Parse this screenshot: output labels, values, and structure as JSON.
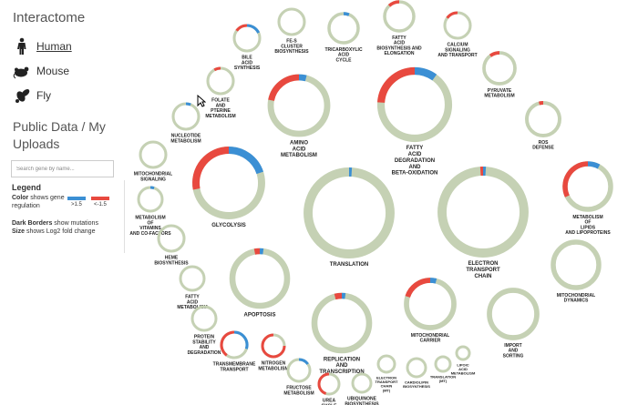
{
  "app": {
    "title": "Interactome"
  },
  "organisms": [
    {
      "label": "Human",
      "icon": "human-icon",
      "active": true
    },
    {
      "label": "Mouse",
      "icon": "mouse-icon",
      "active": false
    },
    {
      "label": "Fly",
      "icon": "fly-icon",
      "active": false
    }
  ],
  "data_heading": "Public Data / My Uploads",
  "search": {
    "placeholder": "Search gene by name..."
  },
  "legend": {
    "title": "Legend",
    "color_key": "Color",
    "color_text": " shows gene regulation",
    "border_key": "Dark Borders",
    "border_text": " show mutations",
    "size_key": "Size",
    "size_text": " shows Log2 fold change",
    "low_label": ">1.5",
    "high_label": "<-1.5"
  },
  "colors": {
    "ring_base": "#c5d1b4",
    "up": "#e8493f",
    "down": "#3b8fd4"
  },
  "pathways": [
    {
      "id": "fe-s-cluster-biosynthesis",
      "label": [
        "FE-S",
        "CLUSTER",
        "BIOSYNTHESIS"
      ],
      "size": 0.3,
      "red": 0.0,
      "blue": 0.0
    },
    {
      "id": "tricarboxylic-acid-cycle",
      "label": [
        "TRICARBOXYLIC",
        "ACID",
        "CYCLE"
      ],
      "size": 0.35,
      "red": 0.0,
      "blue": 0.06
    },
    {
      "id": "fatty-acid-biosynthesis-elongation",
      "label": [
        "FATTY",
        "ACID",
        "BIOSYNTHESIS AND",
        "ELONGATION"
      ],
      "size": 0.35,
      "red": 0.12,
      "blue": 0.0
    },
    {
      "id": "calcium-signaling-transport",
      "label": [
        "CALCIUM",
        "SIGNALING",
        "AND TRANSPORT"
      ],
      "size": 0.3,
      "red": 0.15,
      "blue": 0.0
    },
    {
      "id": "bile-acid-synthesis",
      "label": [
        "BILE",
        "ACID",
        "SYNTHESIS"
      ],
      "size": 0.3,
      "red": 0.15,
      "blue": 0.18
    },
    {
      "id": "amino-acid-metabolism",
      "label": [
        "AMINO",
        "ACID",
        "METABOLISM"
      ],
      "size": 0.8,
      "red": 0.22,
      "blue": 0.04
    },
    {
      "id": "fatty-acid-degradation-beta-oxidation",
      "label": [
        "FATTY",
        "ACID",
        "DEGRADATION",
        "AND",
        "BETA-OXIDATION"
      ],
      "size": 0.9,
      "red": 0.24,
      "blue": 0.1
    },
    {
      "id": "pyruvate-metabolism",
      "label": [
        "PYRUVATE",
        "METABOLISM"
      ],
      "size": 0.35,
      "red": 0.1,
      "blue": 0.0
    },
    {
      "id": "folate-pterine-metabolism",
      "label": [
        "FOLATE",
        "AND",
        "PTERINE",
        "METABOLISM"
      ],
      "size": 0.3,
      "red": 0.08,
      "blue": 0.0
    },
    {
      "id": "nucleotide-metabolism",
      "label": [
        "NUCLEOTIDE",
        "METABOLISM"
      ],
      "size": 0.3,
      "red": 0.0,
      "blue": 0.06
    },
    {
      "id": "ros-defense",
      "label": [
        "ROS",
        "DEFENSE"
      ],
      "size": 0.35,
      "red": 0.04,
      "blue": 0.0
    },
    {
      "id": "mitochondrial-signaling",
      "label": [
        "MITOCHONDRIAL",
        "SIGNALING"
      ],
      "size": 0.3,
      "red": 0.0,
      "blue": 0.0
    },
    {
      "id": "glycolysis",
      "label": [
        "GLYCOLYSIS"
      ],
      "size": 0.75,
      "red": 0.28,
      "blue": 0.2
    },
    {
      "id": "translation",
      "label": [
        "TRANSLATION"
      ],
      "size": 1.0,
      "red": 0.0,
      "blue": 0.01
    },
    {
      "id": "electron-transport-chain",
      "label": [
        "ELECTRON",
        "TRANSPORT",
        "CHAIN"
      ],
      "size": 1.0,
      "red": 0.01,
      "blue": 0.01
    },
    {
      "id": "metabolism-lipids-lipoproteins",
      "label": [
        "METABOLISM",
        "OF",
        "LIPIDS",
        "AND LIPOPROTEINS"
      ],
      "size": 0.6,
      "red": 0.32,
      "blue": 0.08
    },
    {
      "id": "metabolism-vitamins-cofactors",
      "label": [
        "METABOLISM",
        "OF",
        "VITAMINS",
        "AND CO-FACTORS"
      ],
      "size": 0.3,
      "red": 0.0,
      "blue": 0.05
    },
    {
      "id": "heme-biosynthesis",
      "label": [
        "HEME",
        "BIOSYNTHESIS"
      ],
      "size": 0.3,
      "red": 0.0,
      "blue": 0.0
    },
    {
      "id": "mitochondrial-dynamics",
      "label": [
        "MITOCHONDRIAL",
        "DYNAMICS"
      ],
      "size": 0.5,
      "red": 0.0,
      "blue": 0.0
    },
    {
      "id": "fatty-acid-metabolism",
      "label": [
        "FATTY",
        "ACID",
        "METABOLISM"
      ],
      "size": 0.3,
      "red": 0.0,
      "blue": 0.0
    },
    {
      "id": "apoptosis",
      "label": [
        "APOPTOSIS"
      ],
      "size": 0.6,
      "red": 0.03,
      "blue": 0.02
    },
    {
      "id": "protein-stability-degradation",
      "label": [
        "PROTEIN",
        "STABILITY",
        "AND",
        "DEGRADATION"
      ],
      "size": 0.3,
      "red": 0.0,
      "blue": 0.0
    },
    {
      "id": "transmembrane-transport",
      "label": [
        "TRANSMEMBRANE",
        "TRANSPORT"
      ],
      "size": 0.35,
      "red": 0.4,
      "blue": 0.3
    },
    {
      "id": "nitrogen-metabolism",
      "label": [
        "NITROGEN",
        "METABOLISM"
      ],
      "size": 0.3,
      "red": 0.75,
      "blue": 0.0
    },
    {
      "id": "replication-transcription",
      "label": [
        "REPLICATION",
        "AND",
        "TRANSCRIPTION"
      ],
      "size": 0.65,
      "red": 0.04,
      "blue": 0.02
    },
    {
      "id": "mitochondrial-carrier",
      "label": [
        "MITOCHONDRIAL",
        "CARRIER"
      ],
      "size": 0.55,
      "red": 0.2,
      "blue": 0.04
    },
    {
      "id": "import-and-sorting",
      "label": [
        "IMPORT",
        "AND",
        "SORTING"
      ],
      "size": 0.55,
      "red": 0.0,
      "blue": 0.0
    },
    {
      "id": "fructose-metabolism",
      "label": [
        "FRUCTOSE",
        "METABOLISM"
      ],
      "size": 0.3,
      "red": 0.0,
      "blue": 0.15
    },
    {
      "id": "urea-cycle",
      "label": [
        "UREA",
        "CYCLE"
      ],
      "size": 0.3,
      "red": 0.45,
      "blue": 0.0
    },
    {
      "id": "ubiquinone-biosynthesis",
      "label": [
        "UBIQUINONE",
        "BIOSYNTHESIS"
      ],
      "size": 0.28,
      "red": 0.0,
      "blue": 0.0
    },
    {
      "id": "electron-transport-chain-mt",
      "label": [
        "ELECTRON",
        "TRANSPORT",
        "CHAIN",
        "(MT)"
      ],
      "size": 0.25,
      "red": 0.0,
      "blue": 0.0
    },
    {
      "id": "cardiolipin-biosynthesis",
      "label": [
        "CARDIOLIPIN",
        "BIOSYNTHESIS"
      ],
      "size": 0.25,
      "red": 0.0,
      "blue": 0.0
    },
    {
      "id": "translation-mt",
      "label": [
        "TRANSLATION",
        "(MT)"
      ],
      "size": 0.22,
      "red": 0.0,
      "blue": 0.0
    },
    {
      "id": "lipoic-acid-metabolism",
      "label": [
        "LIPOIC",
        "ACID",
        "METABOLISM"
      ],
      "size": 0.2,
      "red": 0.0,
      "blue": 0.0
    }
  ]
}
